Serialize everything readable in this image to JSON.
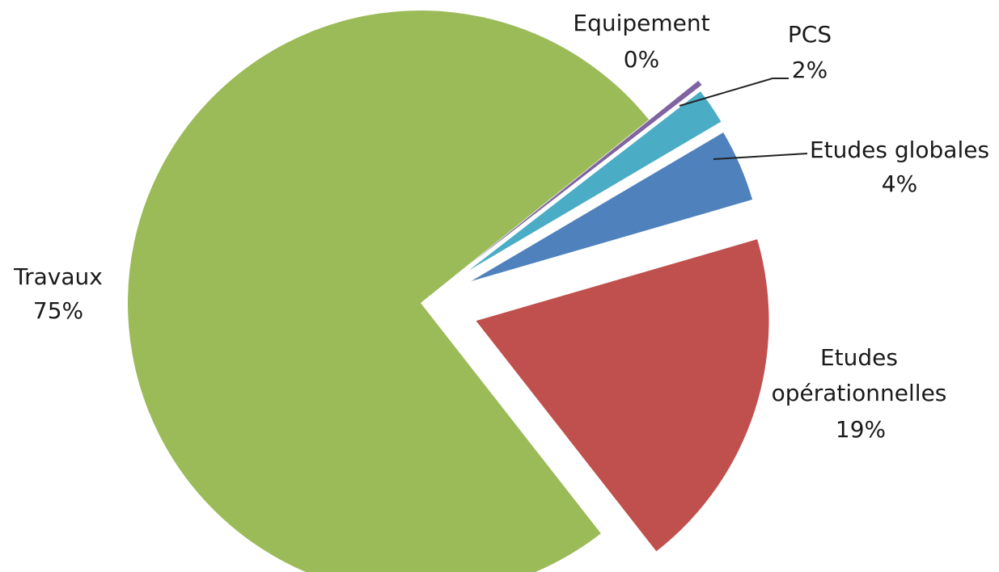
{
  "chart_data": {
    "type": "pie",
    "title": "",
    "slices": [
      {
        "label": "Travaux",
        "value": 75,
        "value_label": "75%",
        "color": "#9BBB59"
      },
      {
        "label": "Equipement",
        "value": 0.3,
        "value_label": "0%",
        "color": "#8064A2"
      },
      {
        "label": "PCS",
        "value": 2,
        "value_label": "2%",
        "color": "#4BACC6"
      },
      {
        "label": "Etudes globales",
        "value": 4,
        "value_label": "4%",
        "color": "#4F81BD"
      },
      {
        "label": "Etudes opérationnelles",
        "value": 19,
        "value_label": "19%",
        "color": "#C0504D"
      }
    ],
    "exploded": true,
    "legend": "none",
    "data_labels": "outside"
  }
}
